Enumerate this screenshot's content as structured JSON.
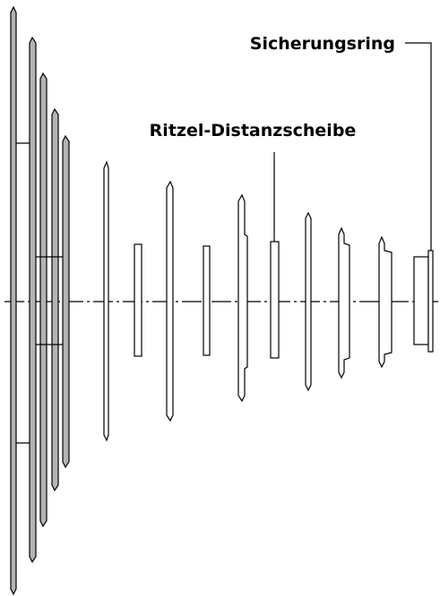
{
  "labels": {
    "retaining_ring": "Sicherungsring",
    "spacer": "Ritzel-Distanzscheibe"
  }
}
